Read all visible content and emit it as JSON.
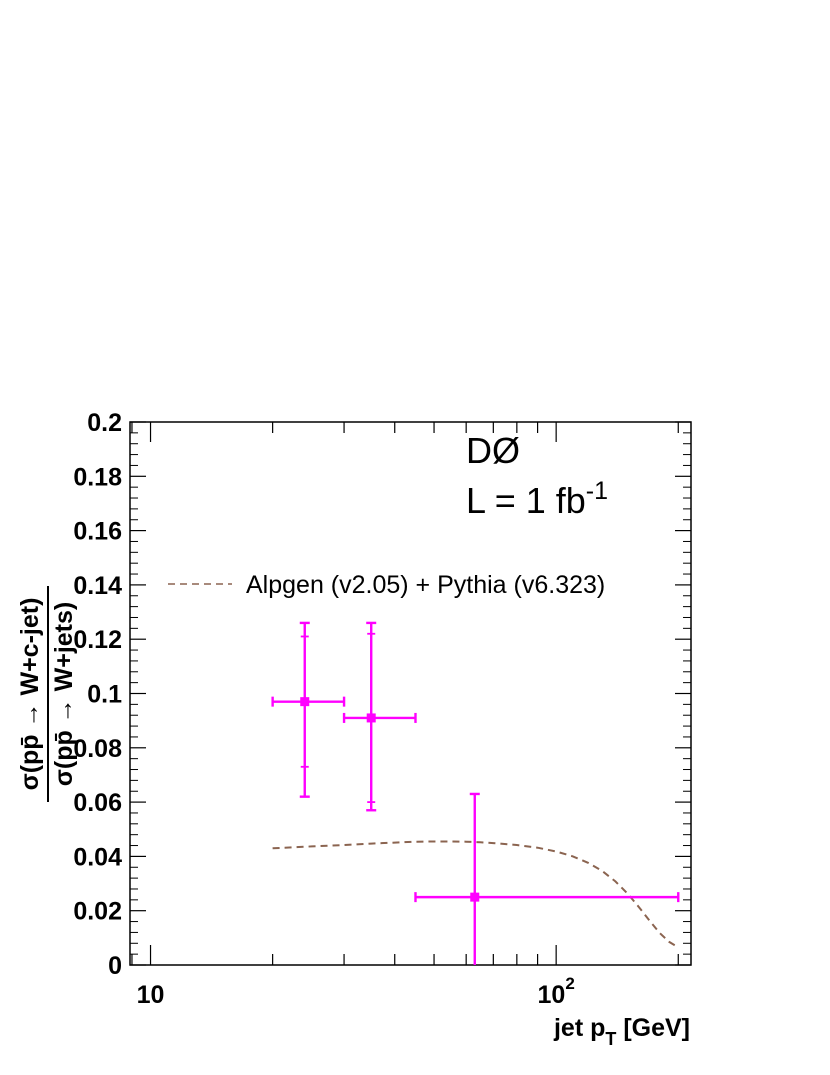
{
  "chart_data": {
    "type": "scatter",
    "title": "",
    "xlabel": "jet p",
    "xlabel_sub": "T",
    "xlabel_unit": " [GeV]",
    "ylabel_numerator": "σ(pp̄ → W+c-jet)",
    "ylabel_denominator": "σ(pp̄ → W+jets)",
    "xscale": "log",
    "xlim": [
      8.9,
      215
    ],
    "ylim": [
      0,
      0.2
    ],
    "grid": false,
    "x_tick_labels": [
      {
        "value": 10,
        "base": "10",
        "exp": ""
      },
      {
        "value": 100,
        "base": "10",
        "exp": "2"
      }
    ],
    "y_ticks": [
      0,
      0.02,
      0.04,
      0.06,
      0.08,
      0.1,
      0.12,
      0.14,
      0.16,
      0.18,
      0.2
    ],
    "y_tick_labels": [
      "0",
      "0.02",
      "0.04",
      "0.06",
      "0.08",
      "0.1",
      "0.12",
      "0.14",
      "0.16",
      "0.18",
      "0.2"
    ],
    "annotations": {
      "experiment": "DØ",
      "lumi_prefix": "L = 1 fb",
      "lumi_exp": "-1"
    },
    "series": [
      {
        "name": "",
        "kind": "data-points",
        "color": "#ff00ff",
        "points": [
          {
            "x": 24,
            "xlo": 20,
            "xhi": 30,
            "y": 0.097,
            "stat_lo": 0.073,
            "stat_hi": 0.121,
            "tot_lo": 0.062,
            "tot_hi": 0.126
          },
          {
            "x": 35,
            "xlo": 30,
            "xhi": 45,
            "y": 0.091,
            "stat_lo": 0.06,
            "stat_hi": 0.122,
            "tot_lo": 0.057,
            "tot_hi": 0.126
          },
          {
            "x": 63,
            "xlo": 45,
            "xhi": 200,
            "y": 0.025,
            "stat_lo": 0.0,
            "stat_hi": 0.063,
            "tot_lo": 0.0,
            "tot_hi": 0.063
          }
        ]
      },
      {
        "name": "Alpgen (v2.05) + Pythia (v6.323)",
        "kind": "dashed-line",
        "color": "#8b6450",
        "x": [
          20,
          25,
          30,
          35,
          40,
          45,
          50,
          55,
          60,
          65,
          70,
          80,
          90,
          100,
          110,
          120,
          130,
          140,
          150,
          160,
          170,
          180,
          190,
          200
        ],
        "y": [
          0.043,
          0.0437,
          0.0442,
          0.0447,
          0.0451,
          0.0454,
          0.0455,
          0.0455,
          0.0454,
          0.0452,
          0.0449,
          0.0442,
          0.0432,
          0.0418,
          0.04,
          0.0376,
          0.0346,
          0.0308,
          0.0263,
          0.0213,
          0.0163,
          0.0118,
          0.0085,
          0.0065
        ]
      }
    ]
  }
}
